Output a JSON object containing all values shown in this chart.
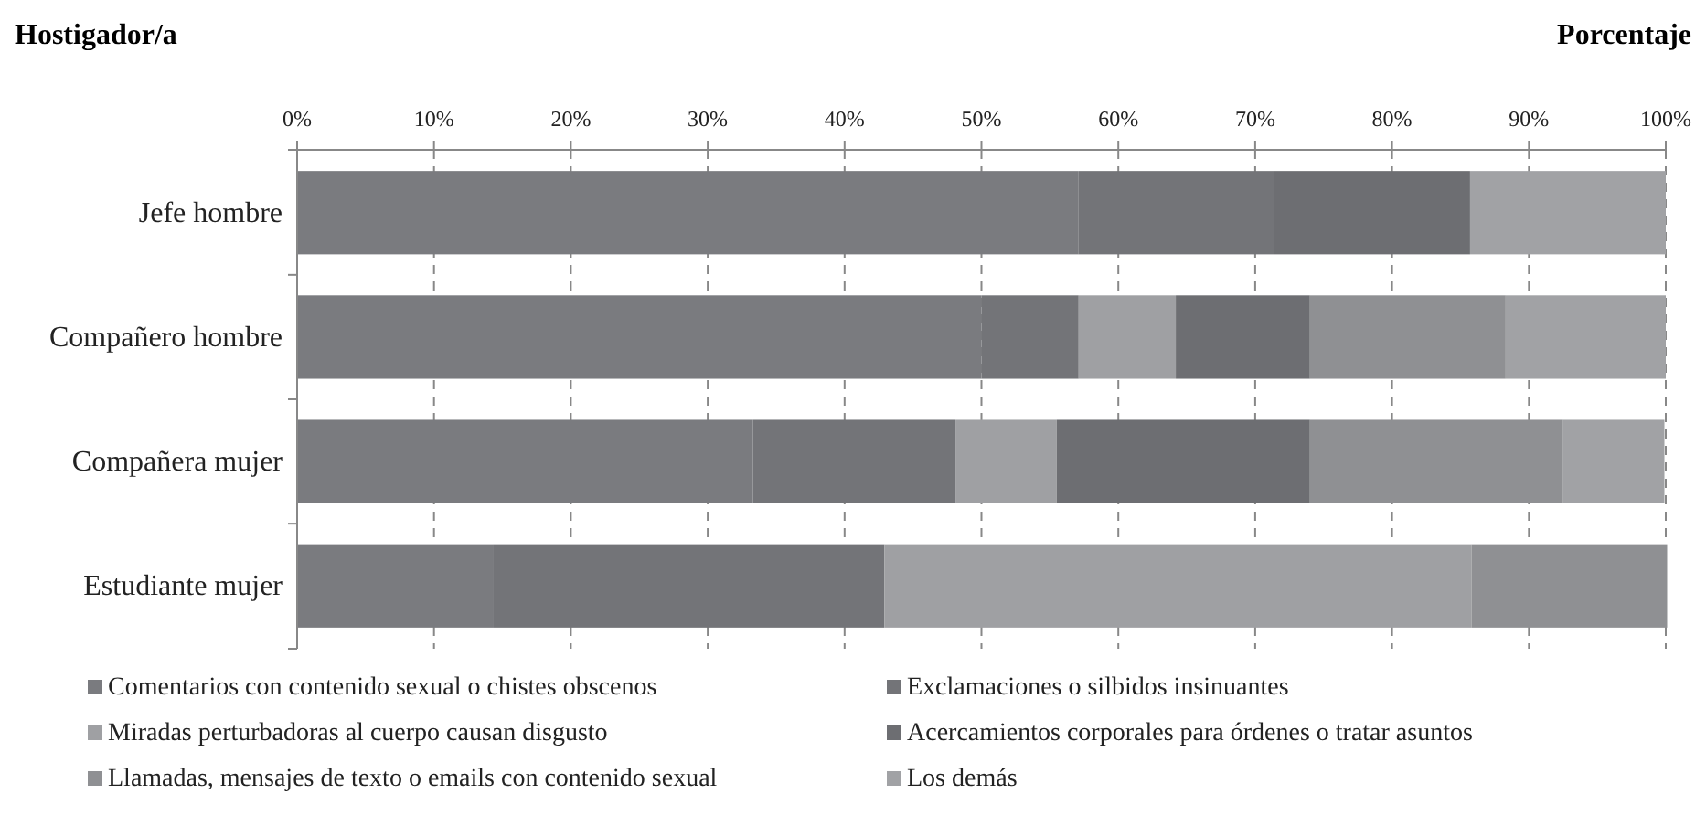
{
  "chart_data": {
    "type": "bar",
    "orientation": "horizontal",
    "stacked": true,
    "ylabel": "Hostigador/a",
    "xlabel": "Porcentaje",
    "categories": [
      "Jefe hombre",
      "Compañero hombre",
      "Compañera mujer",
      "Estudiante mujer"
    ],
    "series": [
      {
        "name": "Comentarios con contenido sexual o chistes obscenos",
        "color": "#7a7b7f",
        "values": [
          57.1,
          50,
          33.3,
          14.3
        ]
      },
      {
        "name": "Exclamaciones o silbidos insinuantes",
        "color": "#737478",
        "values": [
          14.3,
          7.1,
          14.8,
          28.6
        ]
      },
      {
        "name": "Miradas perturbadoras al cuerpo causan disgusto",
        "color": "#9fa0a3",
        "values": [
          0,
          7.1,
          7.4,
          42.9
        ]
      },
      {
        "name": "Acercamientos corporales para órdenes o tratar asuntos",
        "color": "#6d6e72",
        "values": [
          14.3,
          9.8,
          18.5,
          0
        ]
      },
      {
        "name": "Llamadas, mensajes de texto o emails con contenido sexual",
        "color": "#8f9093",
        "values": [
          0,
          14.3,
          18.5,
          14.3
        ]
      },
      {
        "name": "Los demás",
        "color": "#a1a2a5",
        "values": [
          14.3,
          11.7,
          7.4,
          0
        ]
      }
    ],
    "xlim": [
      0,
      100
    ],
    "xticks": [
      {
        "value": 0,
        "label": "0%"
      },
      {
        "value": 10,
        "label": "10%"
      },
      {
        "value": 20,
        "label": "20%"
      },
      {
        "value": 30,
        "label": "30%"
      },
      {
        "value": 40,
        "label": "40%"
      },
      {
        "value": 50,
        "label": "50%"
      },
      {
        "value": 60,
        "label": "60%"
      },
      {
        "value": 70,
        "label": "70%"
      },
      {
        "value": 80,
        "label": "80%"
      },
      {
        "value": 90,
        "label": "90%"
      },
      {
        "value": 100,
        "label": "100%"
      }
    ],
    "grid": "x",
    "legend": "bottom"
  }
}
